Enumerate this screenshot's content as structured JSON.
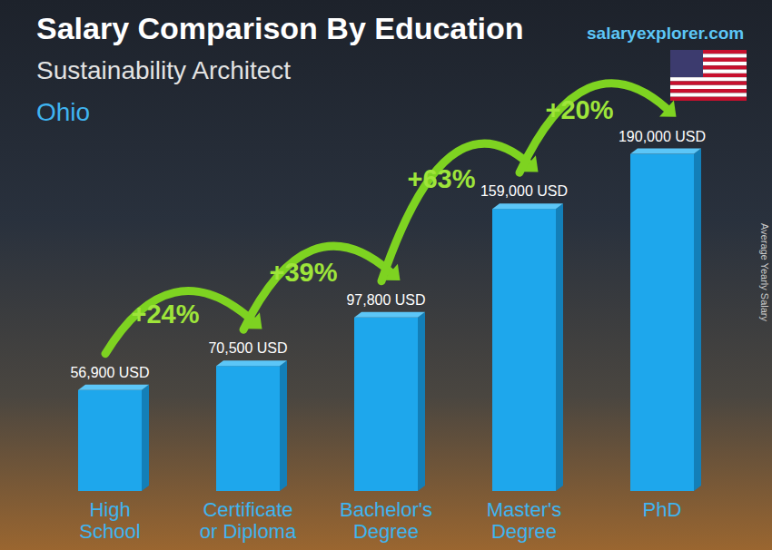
{
  "chart_data": {
    "type": "bar",
    "title": "Salary Comparison By Education",
    "subtitle": "Sustainability Architect",
    "annotations": [
      "Ohio",
      "salaryexplorer.com"
    ],
    "y_label": "Average Yearly Salary",
    "categories": [
      "High School",
      "Certificate or Diploma",
      "Bachelor's Degree",
      "Master's Degree",
      "PhD"
    ],
    "values": [
      56900,
      70500,
      97800,
      159000,
      190000
    ],
    "value_labels": [
      "56,900 USD",
      "70,500 USD",
      "97,800 USD",
      "159,000 USD",
      "190,000 USD"
    ],
    "increase_labels": [
      "+24%",
      "+39%",
      "+63%",
      "+20%"
    ],
    "color": "#1ea7ec",
    "ylim": [
      0,
      200000
    ],
    "data_labels": true,
    "tick_labels": "x",
    "grid": false
  }
}
